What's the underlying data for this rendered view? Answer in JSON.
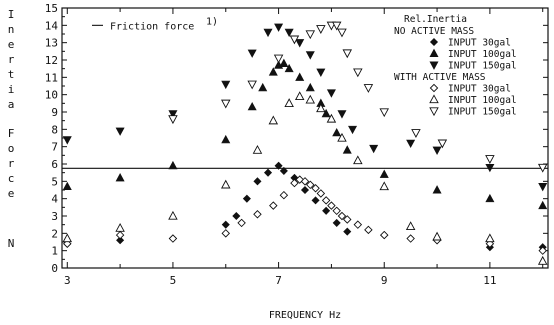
{
  "chart_data": {
    "type": "scatter",
    "title": "",
    "xlabel": "FREQUENCY  Hz",
    "ylabel": "Inertia Force",
    "ylabel_unit": "N",
    "xlim": [
      2.9,
      12.1
    ],
    "ylim": [
      0,
      15
    ],
    "x_ticks": [
      3,
      5,
      7,
      9,
      11
    ],
    "y_ticks": [
      0,
      1,
      2,
      3,
      4,
      5,
      6,
      7,
      8,
      9,
      10,
      11,
      12,
      13,
      14,
      15
    ],
    "grid": false,
    "legend_position": "top-right",
    "legend_title": "Rel.Inertia",
    "legend_groups": [
      {
        "label": "NO ACTIVE MASS"
      },
      {
        "label": "WITH ACTIVE MASS"
      }
    ],
    "reference_line": {
      "name": "Friction force",
      "superscript": "1)",
      "y": 5.75
    },
    "series": [
      {
        "name": "INPUT 30gal",
        "group": "NO ACTIVE MASS",
        "marker": "filled-diamond",
        "x": [
          3,
          4,
          5,
          6,
          6.2,
          6.4,
          6.6,
          6.8,
          7.0,
          7.1,
          7.3,
          7.5,
          7.7,
          7.9,
          8.1,
          8.3,
          9.0,
          10.0,
          11.0,
          12.0
        ],
        "y": [
          1.4,
          1.6,
          1.7,
          2.5,
          3.0,
          4.0,
          5.0,
          5.5,
          5.9,
          5.6,
          5.2,
          4.5,
          3.9,
          3.3,
          2.6,
          2.1,
          1.9,
          1.6,
          1.2,
          1.2
        ]
      },
      {
        "name": "INPUT 100gal",
        "group": "NO ACTIVE MASS",
        "marker": "filled-triangle-up",
        "x": [
          3,
          4,
          5,
          6,
          6.5,
          6.7,
          6.9,
          7.0,
          7.1,
          7.2,
          7.4,
          7.6,
          7.8,
          7.9,
          8.1,
          8.3,
          9.0,
          10.0,
          11.0,
          12.0
        ],
        "y": [
          4.7,
          5.2,
          5.9,
          7.4,
          9.3,
          10.4,
          11.3,
          11.7,
          11.8,
          11.5,
          11.0,
          10.4,
          9.5,
          8.9,
          7.8,
          6.8,
          5.4,
          4.5,
          4.0,
          3.6
        ]
      },
      {
        "name": "INPUT 150gal",
        "group": "NO ACTIVE MASS",
        "marker": "filled-triangle-down",
        "x": [
          3,
          4,
          5,
          6,
          6.5,
          6.8,
          7.0,
          7.2,
          7.4,
          7.6,
          7.8,
          8.0,
          8.2,
          8.4,
          8.8,
          9.5,
          10.0,
          11.0,
          12.0
        ],
        "y": [
          7.4,
          7.9,
          8.9,
          10.6,
          12.4,
          13.6,
          13.9,
          13.6,
          13.0,
          12.3,
          11.3,
          10.1,
          8.9,
          8.0,
          6.9,
          7.2,
          6.8,
          5.8,
          4.7
        ]
      },
      {
        "name": "INPUT 30gal",
        "group": "WITH ACTIVE MASS",
        "marker": "open-diamond",
        "x": [
          3,
          4,
          5,
          6,
          6.3,
          6.6,
          6.9,
          7.1,
          7.3,
          7.4,
          7.5,
          7.6,
          7.7,
          7.8,
          7.9,
          8.0,
          8.1,
          8.2,
          8.3,
          8.5,
          8.7,
          9.0,
          9.5,
          10.0,
          11.0,
          12.0
        ],
        "y": [
          1.4,
          1.9,
          1.7,
          2.0,
          2.6,
          3.1,
          3.6,
          4.2,
          4.9,
          5.1,
          5.0,
          4.8,
          4.6,
          4.3,
          3.9,
          3.6,
          3.3,
          3.0,
          2.8,
          2.5,
          2.2,
          1.9,
          1.7,
          1.6,
          1.4,
          1.0
        ]
      },
      {
        "name": "INPUT 100gal",
        "group": "WITH ACTIVE MASS",
        "marker": "open-triangle-up",
        "x": [
          3,
          4,
          5,
          6,
          6.6,
          6.9,
          7.2,
          7.4,
          7.6,
          7.8,
          8.0,
          8.2,
          8.5,
          9.0,
          9.5,
          10.0,
          11.0,
          12.0
        ],
        "y": [
          1.7,
          2.3,
          3.0,
          4.8,
          6.8,
          8.5,
          9.5,
          9.9,
          9.7,
          9.2,
          8.6,
          7.5,
          6.2,
          4.7,
          2.4,
          1.8,
          1.7,
          0.4
        ]
      },
      {
        "name": "INPUT 150gal",
        "group": "WITH ACTIVE MASS",
        "marker": "open-triangle-down",
        "x": [
          5,
          6,
          6.5,
          7.0,
          7.3,
          7.6,
          7.8,
          8.0,
          8.1,
          8.2,
          8.3,
          8.5,
          8.7,
          9.0,
          9.6,
          10.1,
          11.0,
          12.0
        ],
        "y": [
          8.6,
          9.5,
          10.6,
          12.1,
          13.2,
          13.5,
          13.8,
          14.0,
          14.0,
          13.6,
          12.4,
          11.3,
          10.4,
          9.0,
          7.8,
          7.2,
          6.3,
          5.8
        ]
      }
    ]
  }
}
